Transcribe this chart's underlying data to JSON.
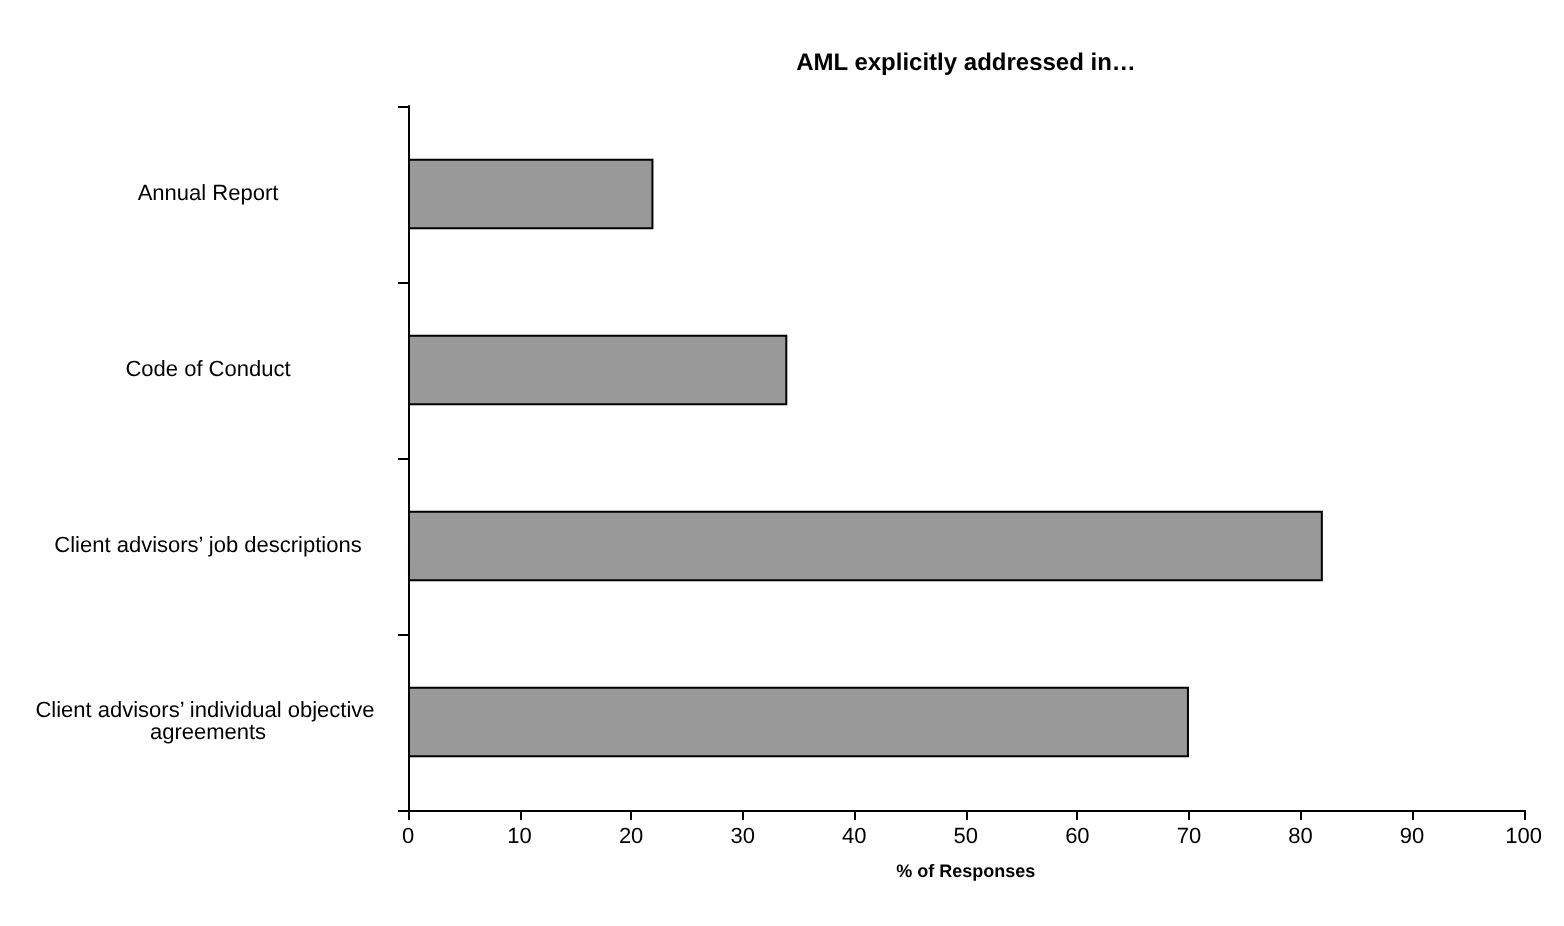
{
  "chart_data": {
    "type": "bar",
    "orientation": "horizontal",
    "title": "AML explicitly addressed in…",
    "xlabel": "% of Responses",
    "categories": [
      "Annual Report",
      "Code of Conduct",
      "Client advisors’ job descriptions",
      "Client advisors’ individual objective agreements"
    ],
    "values": [
      22,
      34,
      82,
      70
    ],
    "color": "#999999",
    "xlim": [
      0,
      100
    ],
    "xticks": [
      0,
      10,
      20,
      30,
      40,
      50,
      60,
      70,
      80,
      90,
      100
    ],
    "grid": false
  }
}
